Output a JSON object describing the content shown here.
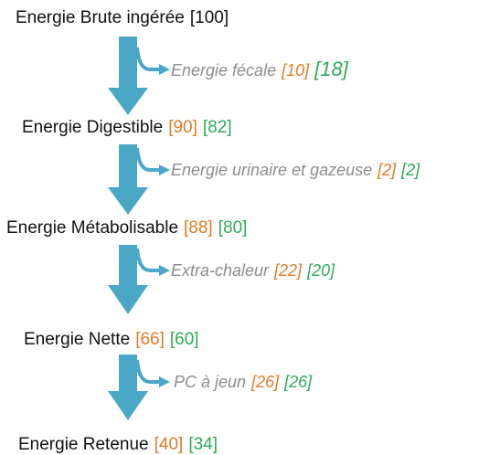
{
  "nodes": [
    {
      "label": "Energie Brute ingérée",
      "values": [
        "[100]"
      ]
    },
    {
      "label": "Energie Digestible",
      "values": [
        "[90]",
        "[82]"
      ]
    },
    {
      "label": "Energie Métabolisable",
      "values": [
        "[88]",
        "[80]"
      ]
    },
    {
      "label": "Energie Nette",
      "values": [
        "[66]",
        "[60]"
      ]
    },
    {
      "label": "Energie Retenue",
      "values": [
        "[40]",
        "[34]"
      ]
    }
  ],
  "losses": [
    {
      "label": "Energie fécale",
      "values": [
        "[10]",
        "[18]"
      ]
    },
    {
      "label": "Energie urinaire et gazeuse",
      "values": [
        "[2]",
        "[2]"
      ]
    },
    {
      "label": "Extra-chaleur",
      "values": [
        "[22]",
        "[20]"
      ]
    },
    {
      "label": "PC à jeun",
      "values": [
        "[26]",
        "[26]"
      ]
    }
  ]
}
